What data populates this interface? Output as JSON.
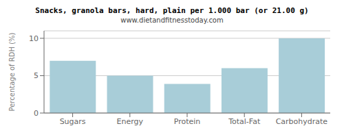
{
  "chart_data": {
    "type": "bar",
    "title": "Snacks, granola bars, hard, plain per 1.000 bar (or 21.00 g)",
    "subtitle": "www.dietandfitnesstoday.com",
    "categories": [
      "Sugars",
      "Energy",
      "Protein",
      "Total-Fat",
      "Carbohydrate"
    ],
    "values": [
      7.0,
      5.0,
      3.9,
      6.0,
      10.0
    ],
    "color": "#a8cdd8",
    "ylabel": "Percentage of RDH (%)",
    "ylim": [
      0,
      11.0
    ],
    "yticks": [
      0,
      5,
      10
    ],
    "grid": true
  }
}
